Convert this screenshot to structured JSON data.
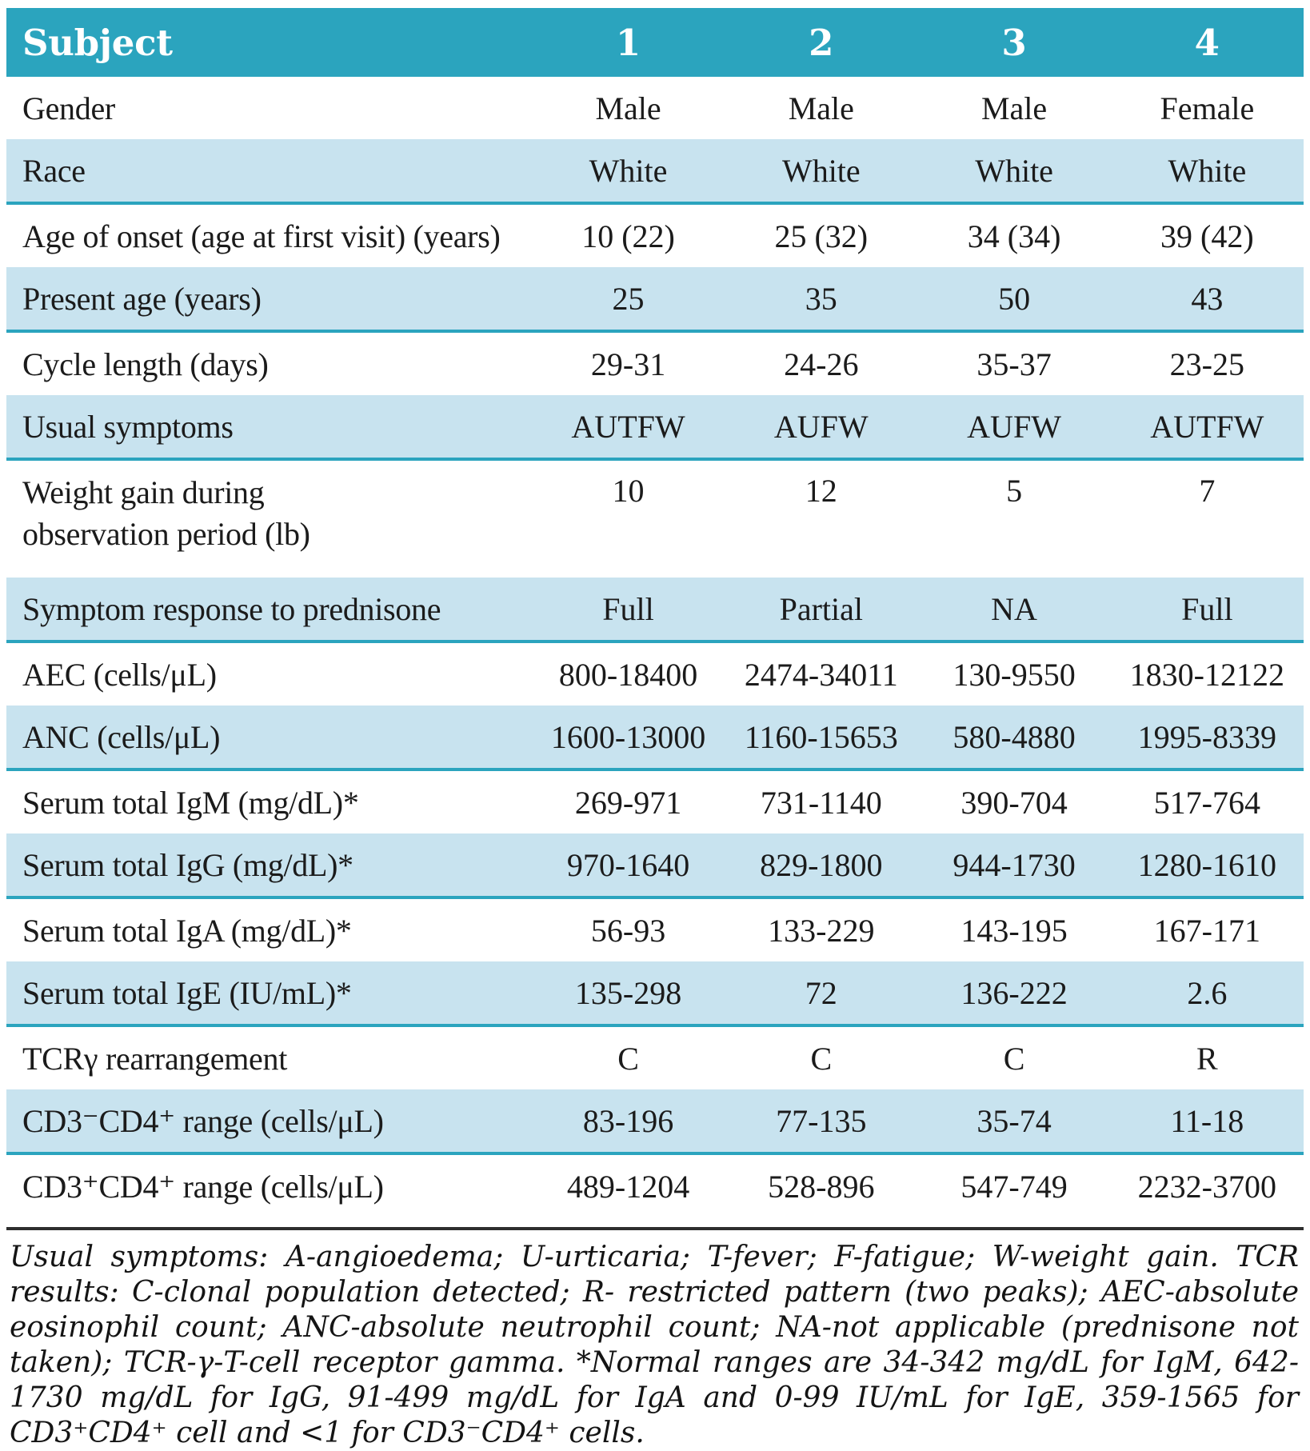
{
  "table": {
    "header": {
      "label": "Subject",
      "columns": [
        "1",
        "2",
        "3",
        "4"
      ]
    },
    "rows": [
      {
        "label": "Gender",
        "values": [
          "Male",
          "Male",
          "Male",
          "Female"
        ]
      },
      {
        "label": "Race",
        "values": [
          "White",
          "White",
          "White",
          "White"
        ]
      },
      {
        "label": "Age of onset (age at first visit) (years)",
        "values": [
          "10 (22)",
          "25 (32)",
          "34 (34)",
          "39 (42)"
        ]
      },
      {
        "label": "Present age (years)",
        "values": [
          "25",
          "35",
          "50",
          "43"
        ]
      },
      {
        "label": "Cycle length (days)",
        "values": [
          "29-31",
          "24-26",
          "35-37",
          "23-25"
        ]
      },
      {
        "label": "Usual symptoms",
        "values": [
          "AUTFW",
          "AUFW",
          "AUFW",
          "AUTFW"
        ]
      },
      {
        "label": "Weight gain during observation period (lb)",
        "values": [
          "10",
          "12",
          "5",
          "7"
        ]
      },
      {
        "label": "Symptom response to prednisone",
        "values": [
          "Full",
          "Partial",
          "NA",
          "Full"
        ]
      },
      {
        "label": "AEC (cells/μL)",
        "values": [
          "800-18400",
          "2474-34011",
          "130-9550",
          "1830-12122"
        ]
      },
      {
        "label": "ANC (cells/μL)",
        "values": [
          "1600-13000",
          "1160-15653",
          "580-4880",
          "1995-8339"
        ]
      },
      {
        "label": "Serum total IgM (mg/dL)*",
        "values": [
          "269-971",
          "731-1140",
          "390-704",
          "517-764"
        ]
      },
      {
        "label": "Serum total IgG (mg/dL)*",
        "values": [
          "970-1640",
          "829-1800",
          "944-1730",
          "1280-1610"
        ]
      },
      {
        "label": "Serum total IgA (mg/dL)*",
        "values": [
          "56-93",
          "133-229",
          "143-195",
          "167-171"
        ]
      },
      {
        "label": "Serum total IgE (IU/mL)*",
        "values": [
          "135-298",
          "72",
          "136-222",
          "2.6"
        ]
      },
      {
        "label": "TCRγ rearrangement",
        "values": [
          "C",
          "C",
          "C",
          "R"
        ]
      },
      {
        "label": "CD3⁻CD4⁺ range (cells/μL)",
        "values": [
          "83-196",
          "77-135",
          "35-74",
          "11-18"
        ]
      },
      {
        "label": "CD3⁺CD4⁺ range (cells/μL)",
        "values": [
          "489-1204",
          "528-896",
          "547-749",
          "2232-3700"
        ]
      }
    ],
    "footnote": "Usual symptoms: A-angioedema; U-urticaria; T-fever; F-fatigue; W-weight gain. TCR results: C-clonal population detected; R- restricted pattern (two peaks); AEC-absolute eosinophil count; ANC-absolute neutrophil count; NA-not applicable (prednisone not taken); TCR-γ-T-cell receptor gamma. *Normal ranges are 34-342 mg/dL for IgM, 642-1730 mg/dL for IgG, 91-499 mg/dL for IgA and 0-99 IU/mL for IgE, 359-1565 for CD3⁺CD4⁺ cell and <1 for CD3⁻CD4⁺ cells.",
    "colors": {
      "header_bg": "#2BA4BE",
      "shaded_row_bg": "#C8E3EF",
      "row_border": "#2BA4BE",
      "text": "#1b1b1b",
      "bottom_rule": "#2e2e2e"
    }
  }
}
